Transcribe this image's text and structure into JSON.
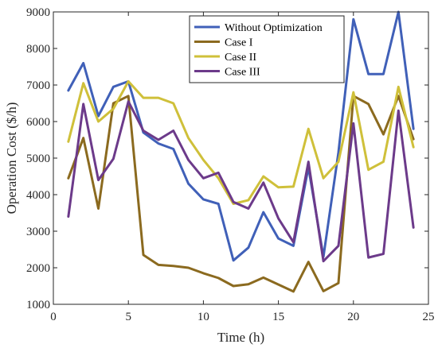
{
  "chart_data": {
    "type": "line",
    "xlabel": "Time (h)",
    "ylabel": "Operation Cost ($/h)",
    "xlim": [
      0,
      25
    ],
    "ylim": [
      1000,
      9000
    ],
    "xticks": [
      0,
      5,
      10,
      15,
      20,
      25
    ],
    "yticks": [
      1000,
      2000,
      3000,
      4000,
      5000,
      6000,
      7000,
      8000,
      9000
    ],
    "grid": false,
    "legend_position": "top-right",
    "x": [
      1,
      2,
      3,
      4,
      5,
      6,
      7,
      8,
      9,
      10,
      11,
      12,
      13,
      14,
      15,
      16,
      17,
      18,
      19,
      20,
      21,
      22,
      23,
      24
    ],
    "series": [
      {
        "name": "Without Optimization",
        "color": "#4060B8",
        "values": [
          6850,
          7600,
          6150,
          6950,
          7100,
          5700,
          5400,
          5250,
          4300,
          3870,
          3750,
          2200,
          2550,
          3520,
          2800,
          2600,
          4750,
          2300,
          5150,
          8800,
          7300,
          7300,
          9000,
          5800
        ]
      },
      {
        "name": "Case I",
        "color": "#8B6A1F",
        "values": [
          4450,
          5550,
          3620,
          6500,
          6700,
          2350,
          2080,
          2050,
          2000,
          1850,
          1720,
          1500,
          1550,
          1730,
          1540,
          1350,
          2160,
          1360,
          1580,
          6700,
          6480,
          5650,
          6700,
          5520
        ]
      },
      {
        "name": "Case II",
        "color": "#CFC03A",
        "values": [
          5450,
          7050,
          6000,
          6350,
          7100,
          6650,
          6650,
          6500,
          5550,
          4950,
          4450,
          3750,
          3850,
          4500,
          4200,
          4220,
          5800,
          4450,
          4900,
          6800,
          4680,
          4900,
          6950,
          5300
        ]
      },
      {
        "name": "Case III",
        "color": "#6C3A8A",
        "values": [
          3400,
          6480,
          4400,
          4980,
          6550,
          5750,
          5500,
          5750,
          4950,
          4450,
          4600,
          3800,
          3620,
          4330,
          3350,
          2700,
          4900,
          2180,
          2600,
          5950,
          2280,
          2380,
          6300,
          3100
        ]
      }
    ]
  }
}
